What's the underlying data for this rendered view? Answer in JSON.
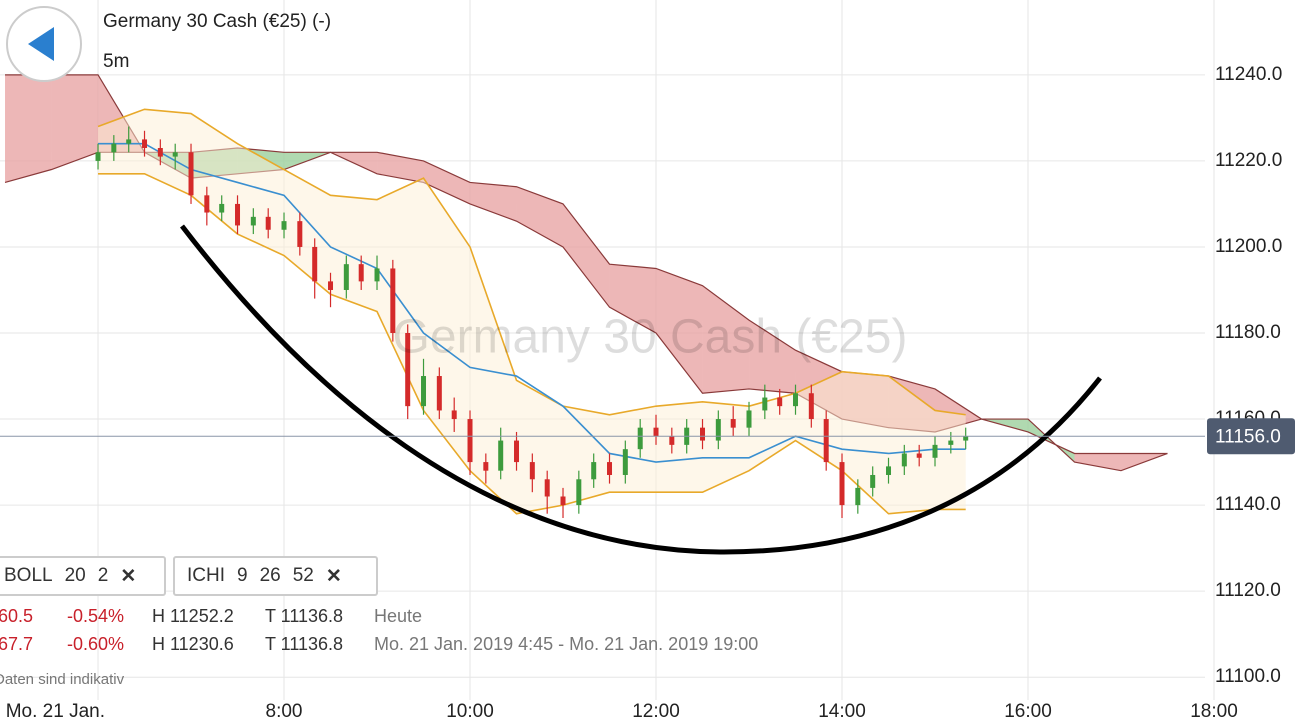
{
  "header": {
    "title": "Germany 30 Cash (€25) (-)",
    "interval": "5m",
    "watermark": "Germany 30 Cash (€25)"
  },
  "chart_data": {
    "type": "candlestick",
    "x": [
      6,
      6.17,
      6.33,
      6.5,
      6.67,
      6.83,
      7,
      7.17,
      7.33,
      7.5,
      7.67,
      7.83,
      8,
      8.17,
      8.33,
      8.5,
      8.67,
      8.83,
      9,
      9.17,
      9.33,
      9.5,
      9.67,
      9.83,
      10,
      10.17,
      10.33,
      10.5,
      10.67,
      10.83,
      11,
      11.17,
      11.33,
      11.5,
      11.67,
      11.83,
      12,
      12.17,
      12.33,
      12.5,
      12.67,
      12.83,
      13,
      13.17,
      13.33,
      13.5,
      13.67,
      13.83,
      14,
      14.17,
      14.33,
      14.5,
      14.67,
      14.83,
      15,
      15.17,
      15.33
    ],
    "open": [
      11220,
      11222,
      11224,
      11225,
      11223,
      11221,
      11222,
      11212,
      11208,
      11210,
      11205,
      11207,
      11204,
      11206,
      11200,
      11192,
      11190,
      11196,
      11192,
      11195,
      11180,
      11163,
      11170,
      11162,
      11160,
      11150,
      11148,
      11155,
      11150,
      11146,
      11142,
      11140,
      11146,
      11150,
      11147,
      11153,
      11158,
      11156,
      11154,
      11158,
      11155,
      11160,
      11158,
      11162,
      11165,
      11163,
      11166,
      11160,
      11150,
      11140,
      11144,
      11147,
      11149,
      11152,
      11151,
      11154,
      11155
    ],
    "high": [
      11224,
      11226,
      11228,
      11227,
      11225,
      11224,
      11224,
      11214,
      11212,
      11212,
      11209,
      11209,
      11208,
      11208,
      11202,
      11194,
      11198,
      11198,
      11198,
      11197,
      11182,
      11174,
      11172,
      11165,
      11162,
      11152,
      11158,
      11157,
      11152,
      11148,
      11144,
      11148,
      11152,
      11152,
      11155,
      11160,
      11161,
      11158,
      11160,
      11160,
      11162,
      11163,
      11164,
      11168,
      11167,
      11168,
      11168,
      11162,
      11152,
      11146,
      11149,
      11151,
      11154,
      11154,
      11156,
      11157,
      11158
    ],
    "low": [
      11218,
      11220,
      11222,
      11221,
      11219,
      11218,
      11210,
      11205,
      11206,
      11203,
      11203,
      11202,
      11202,
      11198,
      11188,
      11186,
      11188,
      11190,
      11190,
      11178,
      11160,
      11161,
      11160,
      11157,
      11147,
      11145,
      11146,
      11148,
      11143,
      11138,
      11137,
      11138,
      11144,
      11145,
      11145,
      11151,
      11154,
      11152,
      11152,
      11153,
      11153,
      11156,
      11156,
      11160,
      11161,
      11161,
      11158,
      11148,
      11137,
      11138,
      11142,
      11145,
      11147,
      11149,
      11149,
      11152,
      11153
    ],
    "close": [
      11222,
      11224,
      11225,
      11223,
      11221,
      11222,
      11212,
      11208,
      11210,
      11205,
      11207,
      11204,
      11206,
      11200,
      11192,
      11190,
      11196,
      11192,
      11195,
      11180,
      11163,
      11170,
      11162,
      11160,
      11150,
      11148,
      11155,
      11150,
      11146,
      11142,
      11140,
      11146,
      11150,
      11147,
      11153,
      11158,
      11156,
      11154,
      11158,
      11155,
      11160,
      11158,
      11162,
      11165,
      11163,
      11166,
      11160,
      11150,
      11140,
      11144,
      11147,
      11149,
      11152,
      11151,
      11154,
      11155,
      11156
    ],
    "up_color": "#3d9b3d",
    "down_color": "#d42a2a",
    "lines": [
      {
        "color": "#e8a92a",
        "x": [
          6,
          6.5,
          7,
          7.5,
          8,
          8.5,
          9,
          9.5,
          10,
          10.5,
          11,
          11.5,
          12,
          12.5,
          13,
          13.5,
          14,
          14.5,
          15,
          15.33
        ],
        "values": [
          11228,
          11232,
          11231,
          11224,
          11218,
          11212,
          11211,
          11216,
          11200,
          11169,
          11163,
          11161,
          11163,
          11164,
          11163,
          11166,
          11171,
          11170,
          11162,
          11161
        ]
      },
      {
        "color": "#e8a92a",
        "x": [
          6,
          6.5,
          7,
          7.5,
          8,
          8.5,
          9,
          9.5,
          10,
          10.5,
          11,
          11.5,
          12,
          12.5,
          13,
          13.5,
          14,
          14.5,
          15,
          15.33
        ],
        "values": [
          11217,
          11217,
          11212,
          11203,
          11198,
          11189,
          11185,
          11162,
          11148,
          11138,
          11140,
          11143,
          11143,
          11143,
          11148,
          11155,
          11148,
          11138,
          11139,
          11139
        ]
      },
      {
        "color": "#3a8fd0",
        "x": [
          6,
          6.5,
          7,
          7.5,
          8,
          8.5,
          9,
          9.5,
          10,
          10.5,
          11,
          11.5,
          12,
          12.5,
          13,
          13.5,
          14,
          14.5,
          15,
          15.33
        ],
        "values": [
          11224,
          11224,
          11218,
          11215,
          11212,
          11200,
          11195,
          11180,
          11172,
          11170,
          11163,
          11152,
          11150,
          11151,
          11151,
          11156,
          11153,
          11152,
          11153,
          11153
        ]
      }
    ],
    "cloud": {
      "up_color": "#9ccf9c",
      "down_color": "#e9a5a5",
      "x": [
        5,
        5.5,
        6,
        6.5,
        7,
        7.5,
        8,
        8.5,
        9,
        9.5,
        10,
        10.5,
        11,
        11.5,
        12,
        12.5,
        13,
        13.5,
        14,
        14.5,
        15,
        15.5,
        16,
        16.5,
        17,
        17.5
      ],
      "span_a": [
        11215,
        11218,
        11222,
        11222,
        11222,
        11223,
        11222,
        11222,
        11217,
        11215,
        11210,
        11206,
        11200,
        11186,
        11180,
        11166,
        11167,
        11166,
        11160,
        11158,
        11157,
        11160,
        11160,
        11150,
        11148,
        11152
      ],
      "span_b": [
        11240,
        11240,
        11240,
        11222,
        11216,
        11217,
        11218,
        11222,
        11222,
        11220,
        11215,
        11214,
        11210,
        11196,
        11195,
        11191,
        11183,
        11176,
        11171,
        11170,
        11167,
        11160,
        11157,
        11152,
        11152,
        11152
      ]
    },
    "last_price": {
      "value": 11156,
      "label": "11156.0"
    },
    "xlim": [
      4.946,
      18
    ],
    "ylim": [
      11094.7,
      11257.4
    ],
    "xticks": [
      {
        "value": 6,
        "label": "Mo. 21 Jan."
      },
      {
        "value": 8,
        "label": "8:00"
      },
      {
        "value": 10,
        "label": "10:00"
      },
      {
        "value": 12,
        "label": "12:00"
      },
      {
        "value": 14,
        "label": "14:00"
      },
      {
        "value": 16,
        "label": "16:00"
      },
      {
        "value": 18,
        "label": "18:00"
      }
    ],
    "yticks": [
      {
        "value": 11100,
        "label": "11100.0"
      },
      {
        "value": 11120,
        "label": "11120.0"
      },
      {
        "value": 11140,
        "label": "11140.0"
      },
      {
        "value": 11160,
        "label": "11160.0"
      },
      {
        "value": 11180,
        "label": "11180.0"
      },
      {
        "value": 11200,
        "label": "11200.0"
      },
      {
        "value": 11220,
        "label": "11220.0"
      },
      {
        "value": 11240,
        "label": "11240.0"
      }
    ],
    "grid": true
  },
  "indicators": [
    {
      "name": "BOLL",
      "params": [
        "20",
        "2"
      ],
      "close": "✕"
    },
    {
      "name": "ICHI",
      "params": [
        "9",
        "26",
        "52"
      ],
      "close": "✕"
    }
  ],
  "stats": [
    [
      "60.5",
      "-0.54%",
      "H 11252.2",
      "T 11136.8",
      "Heute"
    ],
    [
      "67.7",
      "-0.60%",
      "H 11230.6",
      "T 11136.8",
      "Mo. 21 Jan. 2019 4:45 - Mo. 21 Jan. 2019 19:00"
    ]
  ],
  "footer": "Daten sind indikativ"
}
